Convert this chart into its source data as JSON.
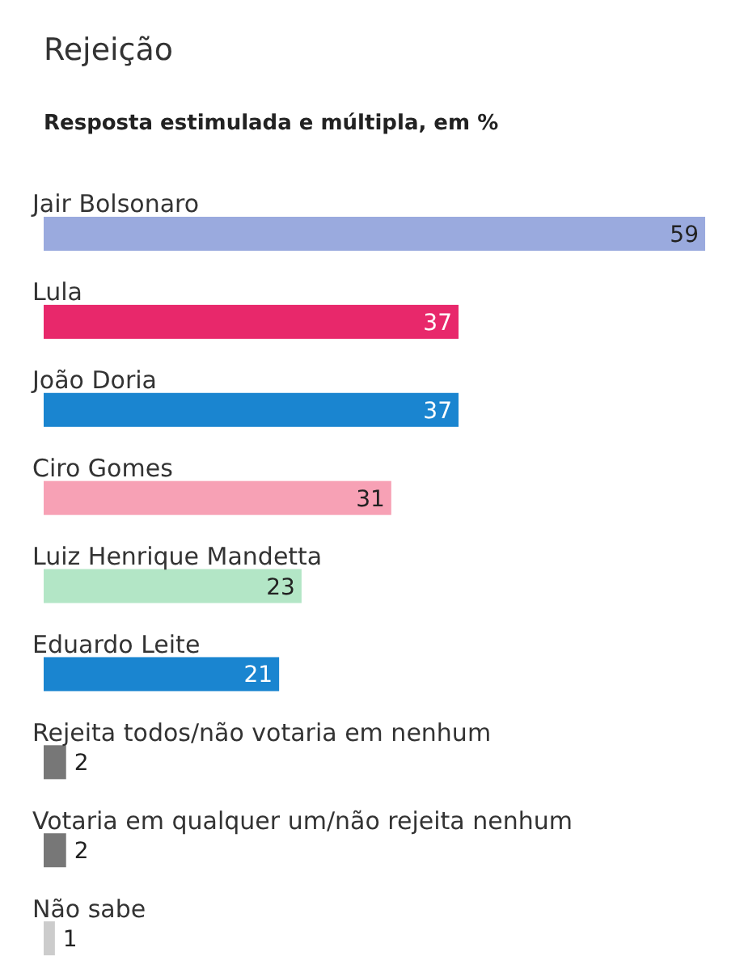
{
  "chart_data": {
    "type": "bar",
    "orientation": "horizontal",
    "title": "Rejeição",
    "subtitle": "Resposta estimulada e múltipla, em %",
    "categories": [
      "Jair Bolsonaro",
      "Lula",
      "João Doria",
      "Ciro Gomes",
      "Luiz Henrique Mandetta",
      "Eduardo Leite",
      "Rejeita todos/não votaria em nenhum",
      "Votaria em qualquer um/não rejeita nenhum",
      "Não sabe"
    ],
    "values": [
      59,
      37,
      37,
      31,
      23,
      21,
      2,
      2,
      1
    ],
    "colors": [
      "#9aaade",
      "#e8286b",
      "#1a85d0",
      "#f7a1b5",
      "#b3e6c6",
      "#1a85d0",
      "#777777",
      "#777777",
      "#cccccc"
    ],
    "data_labels": true
  }
}
